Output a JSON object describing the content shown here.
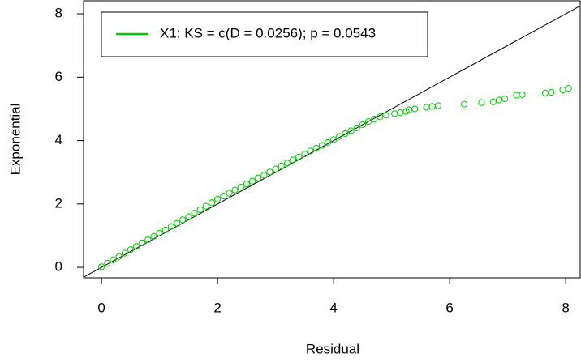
{
  "chart_data": {
    "type": "scatter",
    "xlabel": "Residual",
    "ylabel": "Exponential",
    "xlim": [
      -0.31,
      8.25
    ],
    "ylim": [
      -0.33,
      8.41
    ],
    "xticks": [
      0,
      2,
      4,
      6,
      8
    ],
    "yticks": [
      0,
      2,
      4,
      6,
      8
    ],
    "abline": {
      "intercept": 0,
      "slope": 1
    },
    "legend": "top-left",
    "series": [
      {
        "name": "X1: KS = c(D = 0.0256); p = 0.0543",
        "color": "#00cc00",
        "x": [
          0,
          0.1,
          0.2,
          0.3,
          0.4,
          0.5,
          0.6,
          0.7,
          0.8,
          0.9,
          1.0,
          1.1,
          1.2,
          1.3,
          1.4,
          1.5,
          1.6,
          1.7,
          1.8,
          1.9,
          2.0,
          2.1,
          2.2,
          2.3,
          2.4,
          2.5,
          2.6,
          2.7,
          2.8,
          2.9,
          3.0,
          3.1,
          3.2,
          3.3,
          3.4,
          3.5,
          3.6,
          3.7,
          3.8,
          3.9,
          4.0,
          4.1,
          4.2,
          4.3,
          4.4,
          4.5,
          4.6,
          4.7,
          4.8,
          4.9,
          5.05,
          5.15,
          5.25,
          5.3,
          5.4,
          5.6,
          5.7,
          5.8,
          6.25,
          6.55,
          6.75,
          6.85,
          6.95,
          7.15,
          7.25,
          7.65,
          7.75,
          7.95,
          8.05
        ],
        "y": [
          0.02,
          0.13,
          0.24,
          0.34,
          0.45,
          0.56,
          0.66,
          0.77,
          0.87,
          0.98,
          1.08,
          1.18,
          1.29,
          1.39,
          1.5,
          1.6,
          1.71,
          1.82,
          1.93,
          2.04,
          2.15,
          2.25,
          2.34,
          2.44,
          2.53,
          2.63,
          2.72,
          2.82,
          2.91,
          3.01,
          3.1,
          3.2,
          3.29,
          3.39,
          3.48,
          3.58,
          3.67,
          3.76,
          3.85,
          3.94,
          4.03,
          4.13,
          4.22,
          4.31,
          4.4,
          4.5,
          4.6,
          4.68,
          4.75,
          4.8,
          4.85,
          4.88,
          4.92,
          4.97,
          5.0,
          5.05,
          5.08,
          5.1,
          5.15,
          5.2,
          5.22,
          5.28,
          5.32,
          5.43,
          5.45,
          5.5,
          5.52,
          5.6,
          5.65
        ]
      }
    ]
  }
}
